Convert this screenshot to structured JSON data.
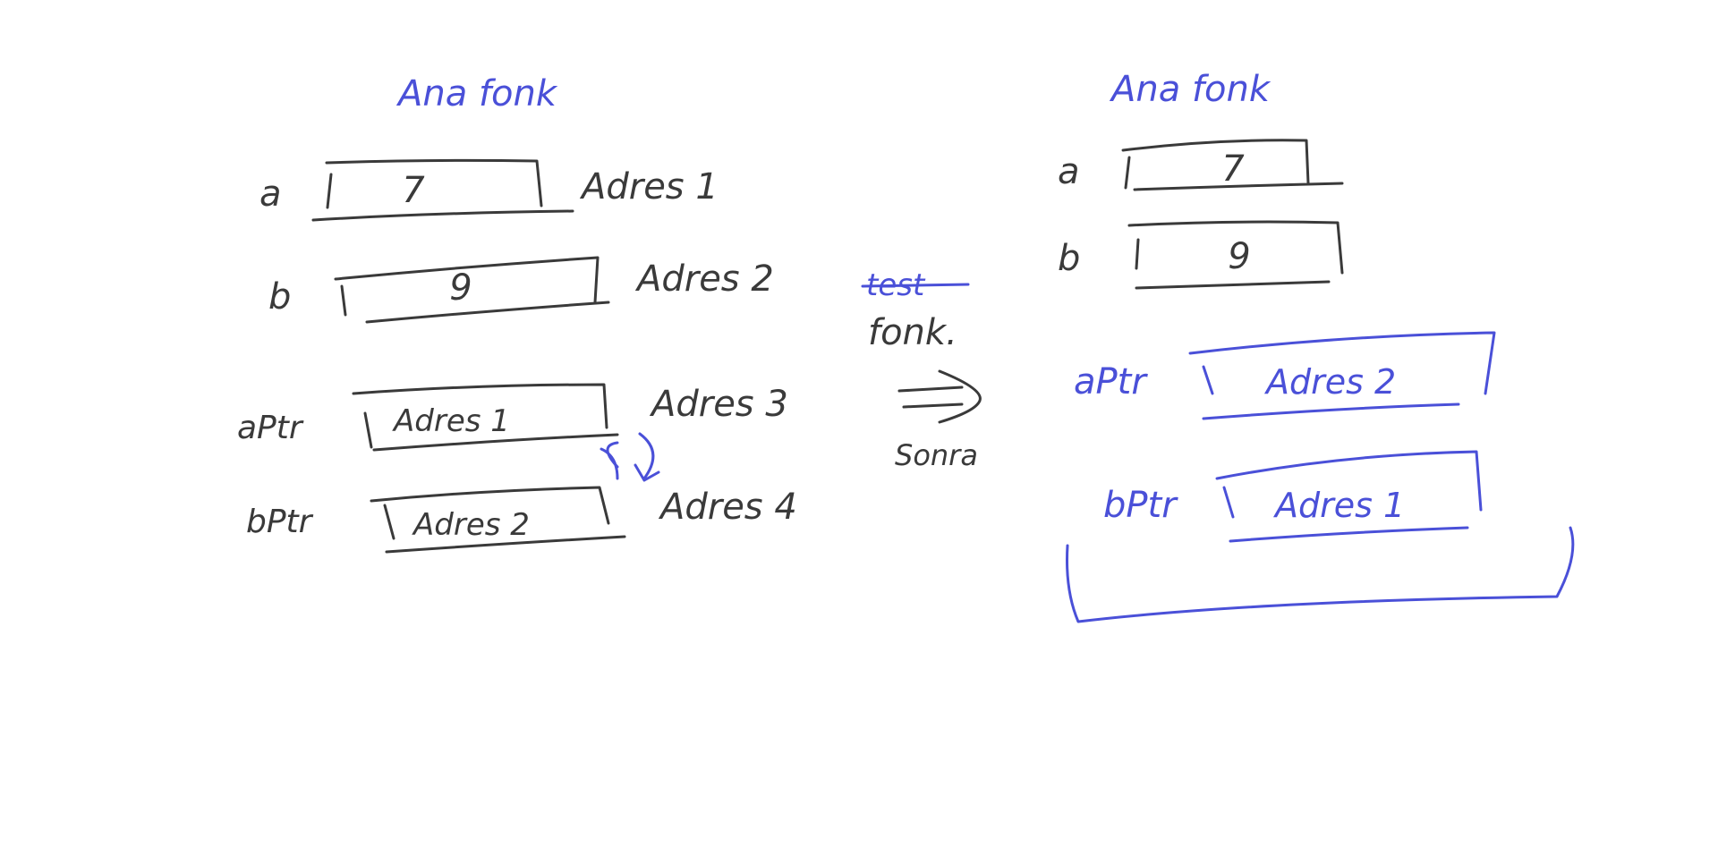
{
  "colors": {
    "background": "#ffffff",
    "dark_ink": "#3a3a3a",
    "blue_ink": "#4a50d8"
  },
  "left": {
    "title": "Ana fonk",
    "vars": [
      {
        "name": "a",
        "value": "7",
        "address": "Adres 1"
      },
      {
        "name": "b",
        "value": "9",
        "address": "Adres 2"
      },
      {
        "name": "aPtr",
        "value": "Adres 1",
        "address": "Adres 3"
      },
      {
        "name": "bPtr",
        "value": "Adres 2",
        "address": "Adres 4"
      }
    ],
    "swap_icon": "swap-arrows-icon"
  },
  "middle": {
    "struck_text": "test",
    "func_text": "fonk.",
    "arrow_icon": "double-arrow-right-icon",
    "after_text": "Sonra"
  },
  "right": {
    "title": "Ana fonk",
    "vars": [
      {
        "name": "a",
        "value": "7"
      },
      {
        "name": "b",
        "value": "9"
      },
      {
        "name": "aPtr",
        "value": "Adres 2"
      },
      {
        "name": "bPtr",
        "value": "Adres 1"
      }
    ]
  }
}
